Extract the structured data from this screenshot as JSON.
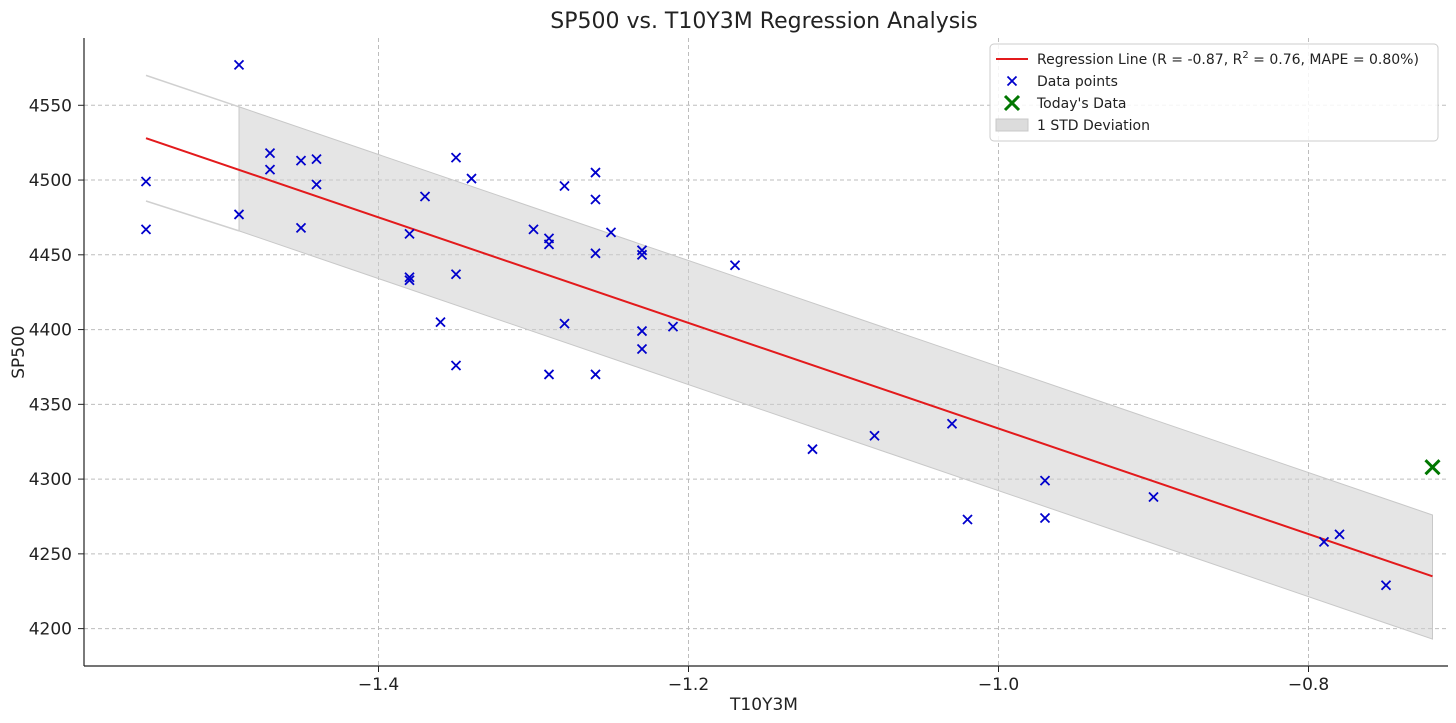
{
  "chart_data": {
    "type": "scatter",
    "title": "SP500 vs. T10Y3M Regression Analysis",
    "xlabel": "T10Y3M",
    "ylabel": "SP500",
    "xlim": [
      -1.59,
      -0.71
    ],
    "ylim": [
      4175,
      4595
    ],
    "x_ticks": [
      -1.4,
      -1.2,
      -1.0,
      -0.8
    ],
    "x_tick_labels": [
      "−1.4",
      "−1.2",
      "−1.0",
      "−0.8"
    ],
    "y_ticks": [
      4200,
      4250,
      4300,
      4350,
      4400,
      4450,
      4500,
      4550
    ],
    "y_tick_labels": [
      "4200",
      "4250",
      "4300",
      "4350",
      "4400",
      "4450",
      "4500",
      "4550"
    ],
    "grid": true,
    "legend_position": "top-right",
    "series": [
      {
        "name": "Data points",
        "kind": "scatter",
        "marker": "x",
        "color": "#0000cc",
        "points": [
          [
            -1.55,
            4499
          ],
          [
            -1.55,
            4467
          ],
          [
            -1.49,
            4577
          ],
          [
            -1.49,
            4477
          ],
          [
            -1.47,
            4518
          ],
          [
            -1.47,
            4507
          ],
          [
            -1.45,
            4513
          ],
          [
            -1.45,
            4468
          ],
          [
            -1.44,
            4514
          ],
          [
            -1.44,
            4497
          ],
          [
            -1.38,
            4464
          ],
          [
            -1.38,
            4435
          ],
          [
            -1.38,
            4433
          ],
          [
            -1.37,
            4489
          ],
          [
            -1.36,
            4405
          ],
          [
            -1.35,
            4515
          ],
          [
            -1.35,
            4437
          ],
          [
            -1.35,
            4376
          ],
          [
            -1.34,
            4501
          ],
          [
            -1.3,
            4467
          ],
          [
            -1.29,
            4461
          ],
          [
            -1.29,
            4457
          ],
          [
            -1.29,
            4370
          ],
          [
            -1.28,
            4496
          ],
          [
            -1.28,
            4404
          ],
          [
            -1.26,
            4505
          ],
          [
            -1.26,
            4487
          ],
          [
            -1.26,
            4451
          ],
          [
            -1.26,
            4370
          ],
          [
            -1.25,
            4465
          ],
          [
            -1.23,
            4453
          ],
          [
            -1.23,
            4450
          ],
          [
            -1.23,
            4399
          ],
          [
            -1.23,
            4387
          ],
          [
            -1.21,
            4402
          ],
          [
            -1.17,
            4443
          ],
          [
            -1.12,
            4320
          ],
          [
            -1.08,
            4329
          ],
          [
            -1.03,
            4337
          ],
          [
            -1.02,
            4273
          ],
          [
            -0.97,
            4299
          ],
          [
            -0.97,
            4274
          ],
          [
            -0.9,
            4288
          ],
          [
            -0.79,
            4258
          ],
          [
            -0.78,
            4263
          ],
          [
            -0.75,
            4229
          ]
        ]
      },
      {
        "name": "Today's Data",
        "kind": "scatter",
        "marker": "x",
        "color": "#007700",
        "points": [
          [
            -0.72,
            4308
          ]
        ]
      },
      {
        "name": "Regression Line (R = -0.87, R² = 0.76, MAPE = 0.80%)",
        "kind": "line",
        "color": "#e31a1c",
        "points": [
          [
            -1.55,
            4528
          ],
          [
            -0.72,
            4235
          ]
        ]
      },
      {
        "name": "1 STD Deviation",
        "kind": "band",
        "color": "#cfcfcf",
        "x": [
          -1.49,
          -0.72
        ],
        "upper": [
          4549,
          4276
        ],
        "lower": [
          4466,
          4193
        ]
      }
    ],
    "outer_band_lines": {
      "color": "#d0d0d0",
      "upper": [
        [
          -1.55,
          4570
        ],
        [
          -1.49,
          4549
        ]
      ],
      "lower": [
        [
          -1.55,
          4486
        ],
        [
          -1.49,
          4466
        ]
      ]
    },
    "legend": [
      {
        "type": "line",
        "label_prefix": "Regression Line (R = -0.87, ",
        "r_symbol": "R",
        "r_exp": "2",
        "label_suffix": " = 0.76, MAPE = 0.80%)",
        "color": "#e31a1c"
      },
      {
        "type": "marker-small",
        "label": "Data points",
        "color": "#0000cc"
      },
      {
        "type": "marker-large",
        "label": "Today's Data",
        "color": "#007700"
      },
      {
        "type": "patch",
        "label": "1 STD Deviation",
        "color": "#dcdcdc"
      }
    ]
  }
}
